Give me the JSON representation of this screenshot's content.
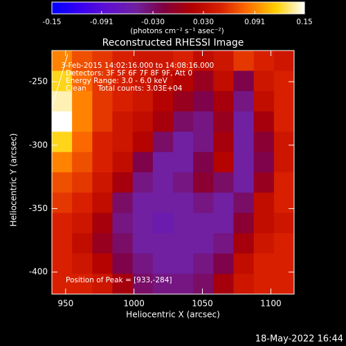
{
  "chart_data": {
    "type": "heatmap",
    "title": "Reconstructed RHESSI Image",
    "x_label": "Heliocentric X (arcsec)",
    "y_label": "Heliocentric Y (arcsec)",
    "colorbar_label": "(photons cm⁻² s⁻¹ asec⁻²)",
    "annotations": [
      "3-Feb-2015 14:02:16.000 to 14:08:16.000",
      "Detectors: 3F 5F 6F 7F 8F 9F, Att 0",
      "Energy Range: 3.0 - 6.0 keV",
      "Clean     Total counts: 3.03E+04"
    ],
    "peak_label": "Position of Peak = [933,-284]",
    "timestamp": "18-May-2022 16:44",
    "xlim": [
      940,
      1117
    ],
    "ylim": [
      -417.4,
      -225.4
    ],
    "xticks": [
      950,
      1000,
      1050,
      1100
    ],
    "yticks": [
      -250,
      -300,
      -350,
      -400
    ],
    "zlim": [
      -0.15,
      0.15
    ],
    "zticks": [
      -0.15,
      {
        "value": -0.091,
        "label": "-0.091"
      },
      {
        "value": -0.03,
        "label": "-0.030"
      },
      {
        "value": 0.03,
        "label": "0.030"
      },
      {
        "value": 0.091,
        "label": "0.091"
      },
      0.15
    ],
    "colormap": [
      "#0000ff",
      "#3800f0",
      "#6010d0",
      "#7020a0",
      "#800040",
      "#b00000",
      "#d82000",
      "#ff7000",
      "#ffd000",
      "#ffffff"
    ],
    "x": [
      947.4,
      962.1,
      976.9,
      991.6,
      1006.4,
      1021.1,
      1035.9,
      1050.6,
      1065.4,
      1080.1,
      1094.9,
      1109.6
    ],
    "y": [
      -233.4,
      -249.4,
      -265.4,
      -281.4,
      -297.4,
      -313.4,
      -329.4,
      -345.4,
      -361.4,
      -377.4,
      -393.4,
      -409.4
    ],
    "z": [
      [
        0.09,
        0.07,
        0.06,
        0.05,
        0.04,
        0.04,
        0.05,
        0.03,
        0.04,
        0.06,
        0.05,
        0.04
      ],
      [
        0.12,
        0.08,
        0.06,
        0.05,
        0.04,
        0.03,
        0.02,
        0.0,
        0.03,
        -0.02,
        0.04,
        0.05
      ],
      [
        0.14,
        0.09,
        0.06,
        0.05,
        0.04,
        0.02,
        0.0,
        -0.02,
        0.01,
        -0.04,
        0.03,
        0.05
      ],
      [
        0.15,
        0.09,
        0.06,
        0.04,
        0.03,
        0.01,
        -0.03,
        -0.04,
        0.0,
        -0.05,
        0.01,
        0.05
      ],
      [
        0.12,
        0.08,
        0.05,
        0.04,
        0.02,
        -0.03,
        -0.05,
        -0.04,
        0.01,
        -0.05,
        -0.01,
        0.04
      ],
      [
        0.09,
        0.07,
        0.05,
        0.03,
        -0.02,
        -0.05,
        -0.05,
        -0.02,
        0.02,
        -0.05,
        -0.02,
        0.04
      ],
      [
        0.07,
        0.06,
        0.04,
        0.01,
        -0.04,
        -0.05,
        -0.04,
        -0.01,
        -0.03,
        -0.05,
        0.0,
        0.05
      ],
      [
        0.06,
        0.05,
        0.03,
        -0.03,
        -0.05,
        -0.05,
        -0.05,
        -0.04,
        -0.05,
        -0.03,
        0.03,
        0.05
      ],
      [
        0.05,
        0.04,
        0.01,
        -0.04,
        -0.05,
        -0.06,
        -0.05,
        -0.05,
        -0.05,
        -0.01,
        0.03,
        0.04
      ],
      [
        0.05,
        0.03,
        0.0,
        -0.03,
        -0.05,
        -0.05,
        -0.05,
        -0.05,
        -0.04,
        0.01,
        0.04,
        0.05
      ],
      [
        0.05,
        0.04,
        0.02,
        -0.02,
        -0.04,
        -0.05,
        -0.05,
        -0.04,
        -0.02,
        0.03,
        0.05,
        0.05
      ],
      [
        0.05,
        0.05,
        0.04,
        0.01,
        -0.03,
        -0.04,
        -0.04,
        -0.03,
        0.01,
        0.04,
        0.05,
        0.05
      ]
    ]
  }
}
